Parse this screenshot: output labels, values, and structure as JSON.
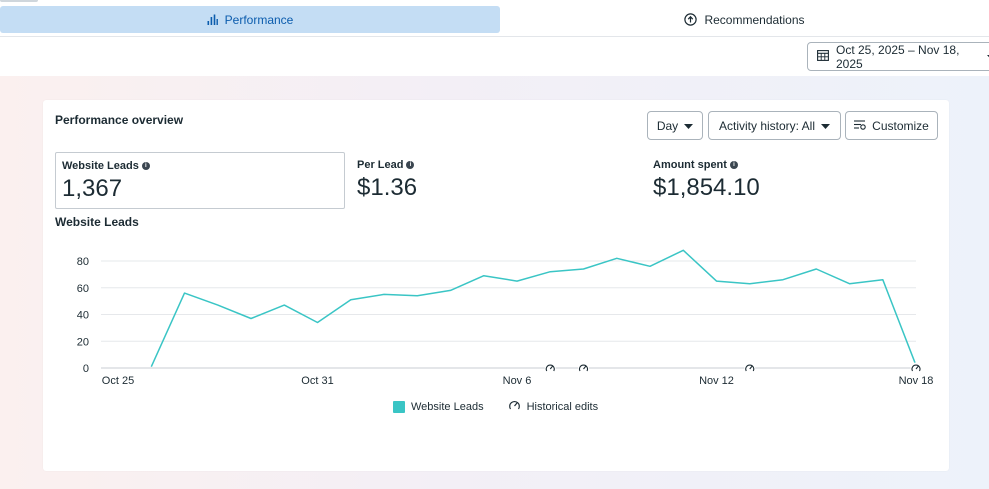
{
  "tabs": [
    {
      "label": "Performance",
      "active": true,
      "icon": "bar-chart-icon"
    },
    {
      "label": "Recommendations",
      "active": false,
      "icon": "arrow-up-circle-icon"
    }
  ],
  "date_range": {
    "label": "Oct 25, 2025 – Nov 18, 2025",
    "icon": "calendar-icon"
  },
  "card": {
    "title": "Performance overview",
    "controls": {
      "granularity": "Day",
      "activity_history": "Activity history: All",
      "customize": "Customize"
    }
  },
  "metrics": [
    {
      "label": "Website Leads",
      "value": "1,367",
      "selected": true
    },
    {
      "label": "Per Lead",
      "value": "$1.36",
      "selected": false
    },
    {
      "label": "Amount spent",
      "value": "$1,854.10",
      "selected": false
    }
  ],
  "chart_title": "Website Leads",
  "legend": {
    "series": "Website Leads",
    "edits": "Historical edits"
  },
  "colors": {
    "accent": "#3ac5c5",
    "tab_active_bg": "#c4ddf4",
    "tab_active_text": "#0b5cad"
  },
  "chart_data": {
    "type": "line",
    "title": "Website Leads",
    "x": [
      "Oct 25",
      "Oct 26",
      "Oct 27",
      "Oct 28",
      "Oct 29",
      "Oct 30",
      "Oct 31",
      "Nov 1",
      "Nov 2",
      "Nov 3",
      "Nov 4",
      "Nov 5",
      "Nov 6",
      "Nov 7",
      "Nov 8",
      "Nov 9",
      "Nov 10",
      "Nov 11",
      "Nov 12",
      "Nov 13",
      "Nov 14",
      "Nov 15",
      "Nov 16",
      "Nov 17",
      "Nov 18"
    ],
    "x_tick_labels": [
      "Oct 25",
      "Oct 31",
      "Nov 6",
      "Nov 12",
      "Nov 18"
    ],
    "series": [
      {
        "name": "Website Leads",
        "values": [
          null,
          1,
          56,
          47,
          37,
          47,
          34,
          51,
          55,
          54,
          58,
          69,
          65,
          72,
          74,
          82,
          76,
          88,
          65,
          63,
          66,
          74,
          63,
          66,
          2
        ]
      }
    ],
    "y_ticks": [
      0,
      20,
      40,
      60,
      80
    ],
    "ylim": [
      0,
      90
    ],
    "grid": true,
    "historical_edits": [
      "Nov 7",
      "Nov 8",
      "Nov 13",
      "Nov 18"
    ],
    "legend_position": "bottom-center"
  }
}
